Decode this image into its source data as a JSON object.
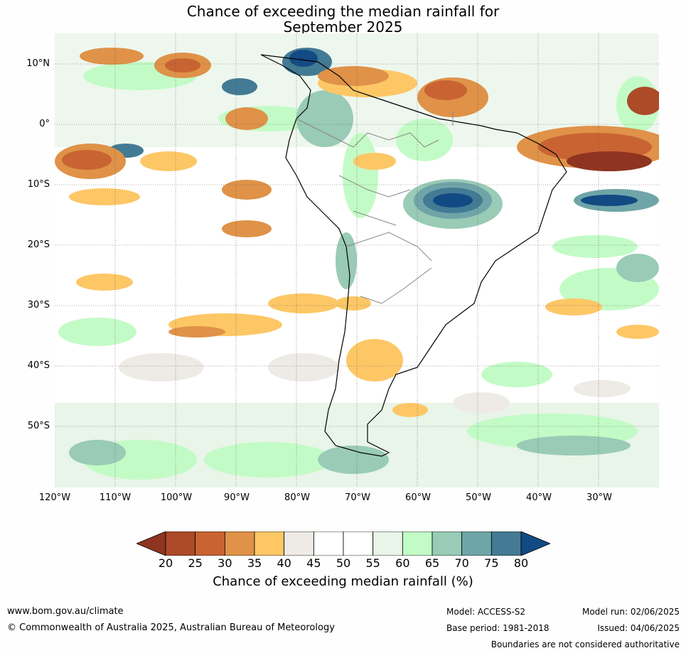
{
  "title_line1": "Chance of exceeding the median rainfall for",
  "title_line2": "September 2025",
  "lat_labels": [
    "10°N",
    "0°",
    "10°S",
    "20°S",
    "30°S",
    "40°S",
    "50°S"
  ],
  "lon_labels": [
    "120°W",
    "110°W",
    "100°W",
    "90°W",
    "80°W",
    "70°W",
    "60°W",
    "50°W",
    "40°W",
    "30°W"
  ],
  "colorbar": {
    "ticks": [
      "20",
      "25",
      "30",
      "35",
      "40",
      "45",
      "50",
      "55",
      "60",
      "65",
      "70",
      "75",
      "80"
    ],
    "colors": [
      "#8e3420",
      "#ad4a28",
      "#c96432",
      "#df9248",
      "#fdc766",
      "#eeebe6",
      "#ffffff",
      "#ffffff",
      "#e8f5e8",
      "#c3fbc6",
      "#99cbb6",
      "#6fa5a8",
      "#437a94",
      "#124a84"
    ],
    "label": "Chance of exceeding median rainfall (%)"
  },
  "footer": {
    "url": "www.bom.gov.au/climate",
    "copyright": "© Commonwealth of Australia 2025, Australian Bureau of Meteorology",
    "model": "Model: ACCESS-S2",
    "base_period": "Base period: 1981-2018",
    "model_run": "Model run: 02/06/2025",
    "issued": "Issued: 04/06/2025",
    "disclaimer": "Boundaries are not considered authoritative"
  }
}
